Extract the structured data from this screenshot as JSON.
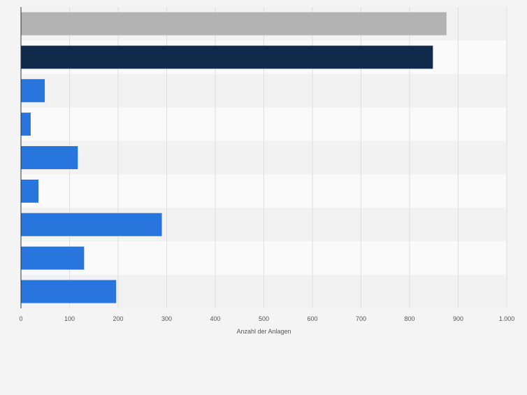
{
  "colors": {
    "background": "#f4f4f4",
    "band_light": "#fafafa",
    "band_dark": "#f2f2f2",
    "grid": "#dedede",
    "axis": "#333333",
    "tick_text": "#555555",
    "bar_total": "#b3b3b3",
    "bar_highlight": "#0f2a4a",
    "bar_default": "#2876dd"
  },
  "chart_data": {
    "type": "bar",
    "orientation": "horizontal",
    "title": "",
    "xlabel": "Anzahl der Anlagen",
    "ylabel": "",
    "xlim": [
      0,
      1000
    ],
    "grid": true,
    "legend": "none",
    "x_tick_values": [
      0,
      100,
      200,
      300,
      400,
      500,
      600,
      700,
      800,
      900,
      1000
    ],
    "x_tick_labels": [
      "0",
      "100",
      "200",
      "300",
      "400",
      "500",
      "600",
      "700",
      "800",
      "900",
      "1.000"
    ],
    "categories": [
      "",
      "",
      "",
      "",
      "",
      "",
      "",
      "",
      ""
    ],
    "values": [
      876,
      848,
      49,
      20,
      117,
      36,
      290,
      130,
      196
    ],
    "bar_colors": [
      "#b3b3b3",
      "#0f2a4a",
      "#2876dd",
      "#2876dd",
      "#2876dd",
      "#2876dd",
      "#2876dd",
      "#2876dd",
      "#2876dd"
    ]
  }
}
